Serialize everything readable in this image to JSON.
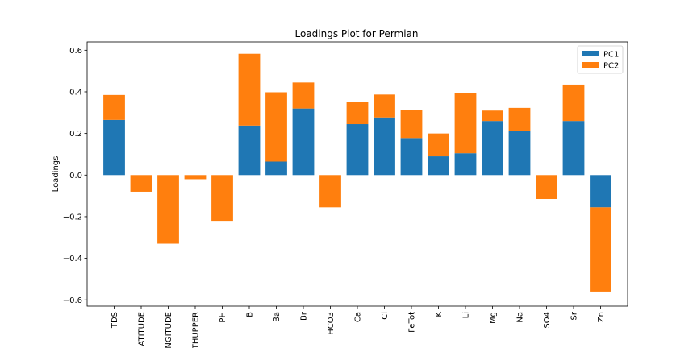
{
  "chart_data": {
    "type": "bar",
    "stacked": true,
    "title": "Loadings Plot for Permian",
    "xlabel": "",
    "ylabel": "Loadings",
    "ylim": [
      -0.63,
      0.64
    ],
    "yticks": [
      -0.6,
      -0.4,
      -0.2,
      0.0,
      0.2,
      0.4,
      0.6
    ],
    "ytick_labels": [
      "−0.6",
      "−0.4",
      "−0.2",
      "0.0",
      "0.2",
      "0.4",
      "0.6"
    ],
    "categories": [
      "TDS",
      "LATITUDE",
      "LONGITUDE",
      "DEPTHUPPER",
      "PH",
      "B",
      "Ba",
      "Br",
      "HCO3",
      "Ca",
      "Cl",
      "FeTot",
      "K",
      "Li",
      "Mg",
      "Na",
      "SO4",
      "Sr",
      "Zn"
    ],
    "tick_labels": [
      "TDS",
      "ATITUDE",
      "NGITUDE",
      "THUPPER",
      "PH",
      "B",
      "Ba",
      "Br",
      "HCO3",
      "Ca",
      "Cl",
      "FeTot",
      "K",
      "Li",
      "Mg",
      "Na",
      "SO4",
      "Sr",
      "Zn"
    ],
    "series": [
      {
        "name": "PC1",
        "color": "#1f77b4",
        "values": [
          0.265,
          0.0,
          0.0,
          0.0,
          0.0,
          0.238,
          0.065,
          0.32,
          0.0,
          0.245,
          0.277,
          0.178,
          0.09,
          0.105,
          0.26,
          0.213,
          0.0,
          0.26,
          -0.155
        ]
      },
      {
        "name": "PC2",
        "color": "#ff7f0e",
        "base": [
          0.265,
          0.0,
          0.0,
          0.0,
          0.0,
          0.238,
          0.065,
          0.32,
          0.0,
          0.245,
          0.277,
          0.178,
          0.09,
          0.105,
          0.26,
          0.213,
          0.0,
          0.26,
          -0.155
        ],
        "values": [
          0.12,
          -0.08,
          -0.33,
          -0.02,
          -0.22,
          0.345,
          0.333,
          0.125,
          -0.155,
          0.107,
          0.11,
          0.133,
          0.11,
          0.288,
          0.05,
          0.11,
          -0.115,
          0.175,
          -0.405
        ]
      }
    ],
    "legend_position": "top-right",
    "grid": false
  }
}
